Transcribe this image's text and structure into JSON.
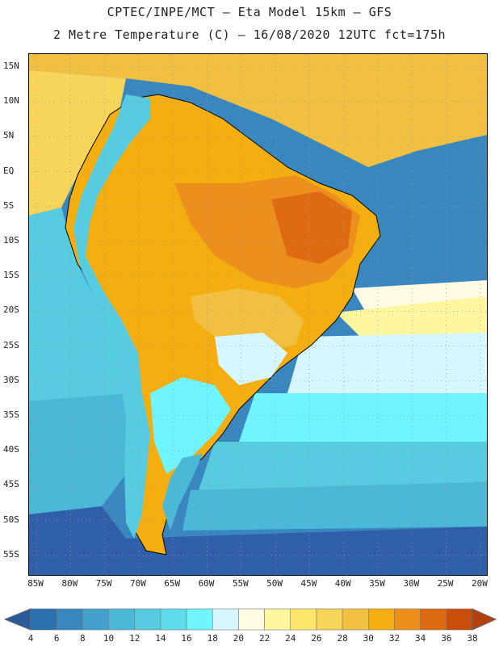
{
  "title_line1": "CPTEC/INPE/MCT –  Eta Model 15km – GFS",
  "title_line2": "2 Metre Temperature (C) – 16/08/2020 12UTC fct=175h",
  "lat_labels": [
    "15N",
    "10N",
    "5N",
    "EQ",
    "5S",
    "10S",
    "15S",
    "20S",
    "25S",
    "30S",
    "35S",
    "40S",
    "45S",
    "50S",
    "55S"
  ],
  "lon_labels": [
    "85W",
    "80W",
    "75W",
    "70W",
    "65W",
    "60W",
    "55W",
    "50W",
    "45W",
    "40W",
    "35W",
    "30W",
    "25W",
    "20W"
  ],
  "colorbar": {
    "labels": [
      "4",
      "6",
      "8",
      "10",
      "12",
      "14",
      "16",
      "18",
      "20",
      "22",
      "24",
      "26",
      "28",
      "30",
      "32",
      "34",
      "36",
      "38"
    ],
    "colors": [
      "#2c6fae",
      "#3a86bf",
      "#43a0cd",
      "#4cb8d8",
      "#57cbe0",
      "#5fdcea",
      "#6ef5ff",
      "#d6f7ff",
      "#fffbe4",
      "#fff7a0",
      "#fde76b",
      "#f7d558",
      "#f1c040",
      "#f4ae10",
      "#ec8f1d",
      "#de6a12",
      "#c84e0c"
    ],
    "below_color": "#2a5a9a",
    "above_color": "#b4400a"
  },
  "map_colors": {
    "ocean_south_deep": "#2e5fa8",
    "ocean_south": "#3a86bf",
    "ocean_mid": "#4cb8d8",
    "ocean_cyan": "#6ef5ff",
    "ocean_pale": "#d6f7ff",
    "ocean_cream": "#fffbe4",
    "ocean_north": "#f1c040",
    "land_hot": "#ec8f1d",
    "land_warm": "#f4ae10",
    "andes": "#57cbe0",
    "coast": "#000000"
  }
}
